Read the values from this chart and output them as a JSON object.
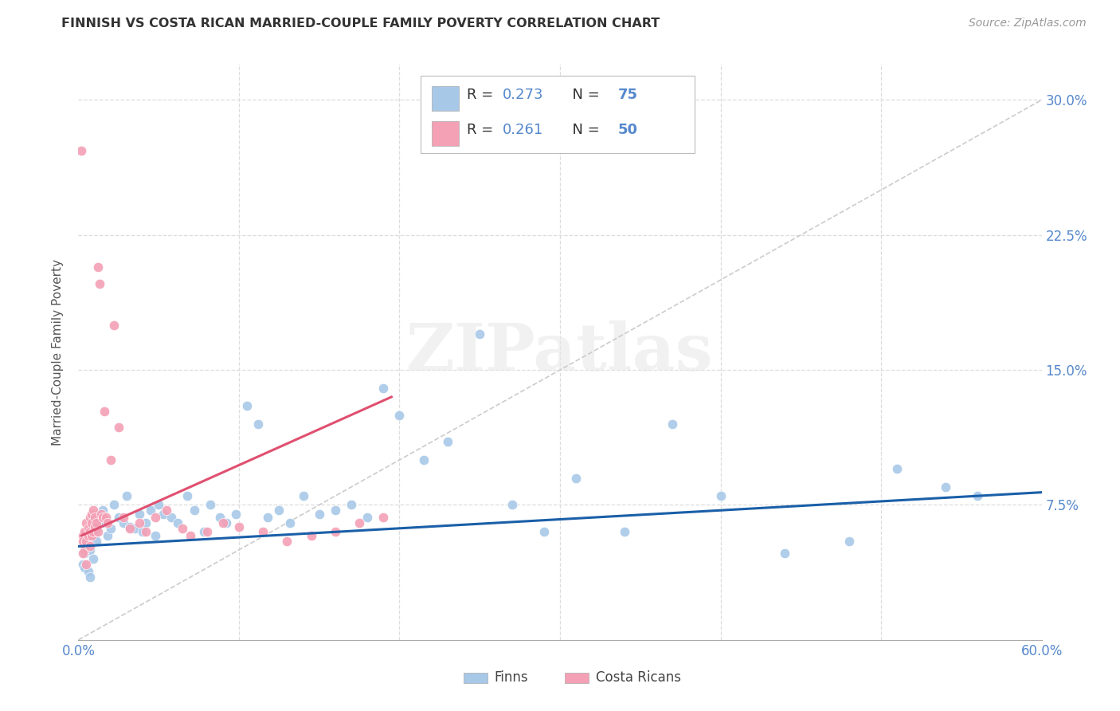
{
  "title": "FINNISH VS COSTA RICAN MARRIED-COUPLE FAMILY POVERTY CORRELATION CHART",
  "source": "Source: ZipAtlas.com",
  "ylabel": "Married-Couple Family Poverty",
  "xlim": [
    0.0,
    0.6
  ],
  "ylim": [
    0.0,
    0.32
  ],
  "yticks": [
    0.0,
    0.075,
    0.15,
    0.225,
    0.3
  ],
  "yticklabels_right": [
    "",
    "7.5%",
    "15.0%",
    "22.5%",
    "30.0%"
  ],
  "finn_color": "#a8c8e8",
  "costa_color": "#f4a0b5",
  "finn_line_color": "#1a5fa8",
  "costa_line_color": "#e05070",
  "diag_line_color": "#cccccc",
  "legend_finn_R": "0.273",
  "legend_finn_N": "75",
  "legend_costa_R": "0.261",
  "legend_costa_N": "50",
  "watermark": "ZIPatlas",
  "background_color": "#ffffff",
  "grid_color": "#dddddd",
  "tick_color": "#5588cc",
  "finn_x": [
    0.004,
    0.005,
    0.005,
    0.006,
    0.006,
    0.007,
    0.007,
    0.008,
    0.008,
    0.009,
    0.009,
    0.01,
    0.01,
    0.011,
    0.011,
    0.012,
    0.013,
    0.014,
    0.015,
    0.016,
    0.018,
    0.02,
    0.022,
    0.025,
    0.028,
    0.03,
    0.032,
    0.035,
    0.038,
    0.04,
    0.042,
    0.045,
    0.048,
    0.05,
    0.053,
    0.058,
    0.062,
    0.068,
    0.072,
    0.078,
    0.082,
    0.088,
    0.092,
    0.098,
    0.105,
    0.112,
    0.118,
    0.125,
    0.132,
    0.14,
    0.15,
    0.16,
    0.17,
    0.18,
    0.19,
    0.2,
    0.215,
    0.23,
    0.25,
    0.27,
    0.29,
    0.31,
    0.34,
    0.37,
    0.4,
    0.44,
    0.48,
    0.51,
    0.54,
    0.56,
    0.003,
    0.004,
    0.006,
    0.007,
    0.009
  ],
  "finn_y": [
    0.048,
    0.052,
    0.058,
    0.055,
    0.06,
    0.05,
    0.062,
    0.057,
    0.063,
    0.058,
    0.065,
    0.06,
    0.068,
    0.062,
    0.055,
    0.07,
    0.065,
    0.068,
    0.072,
    0.065,
    0.058,
    0.062,
    0.075,
    0.068,
    0.065,
    0.08,
    0.063,
    0.062,
    0.07,
    0.06,
    0.065,
    0.072,
    0.058,
    0.075,
    0.07,
    0.068,
    0.065,
    0.08,
    0.072,
    0.06,
    0.075,
    0.068,
    0.065,
    0.07,
    0.13,
    0.12,
    0.068,
    0.072,
    0.065,
    0.08,
    0.07,
    0.072,
    0.075,
    0.068,
    0.14,
    0.125,
    0.1,
    0.11,
    0.17,
    0.075,
    0.06,
    0.09,
    0.06,
    0.12,
    0.08,
    0.048,
    0.055,
    0.095,
    0.085,
    0.08,
    0.042,
    0.04,
    0.038,
    0.035,
    0.045
  ],
  "costa_x": [
    0.002,
    0.003,
    0.003,
    0.004,
    0.004,
    0.005,
    0.005,
    0.006,
    0.006,
    0.007,
    0.007,
    0.008,
    0.008,
    0.008,
    0.009,
    0.009,
    0.01,
    0.01,
    0.011,
    0.012,
    0.012,
    0.013,
    0.014,
    0.015,
    0.016,
    0.017,
    0.018,
    0.02,
    0.022,
    0.025,
    0.028,
    0.032,
    0.038,
    0.042,
    0.048,
    0.055,
    0.065,
    0.07,
    0.08,
    0.09,
    0.1,
    0.115,
    0.13,
    0.145,
    0.16,
    0.175,
    0.19,
    0.003,
    0.005,
    0.007
  ],
  "costa_y": [
    0.272,
    0.058,
    0.055,
    0.06,
    0.05,
    0.065,
    0.055,
    0.058,
    0.062,
    0.068,
    0.06,
    0.07,
    0.065,
    0.058,
    0.072,
    0.06,
    0.068,
    0.063,
    0.065,
    0.06,
    0.207,
    0.198,
    0.07,
    0.068,
    0.127,
    0.068,
    0.065,
    0.1,
    0.175,
    0.118,
    0.068,
    0.062,
    0.065,
    0.06,
    0.068,
    0.072,
    0.062,
    0.058,
    0.06,
    0.065,
    0.063,
    0.06,
    0.055,
    0.058,
    0.06,
    0.065,
    0.068,
    0.048,
    0.042,
    0.052
  ]
}
